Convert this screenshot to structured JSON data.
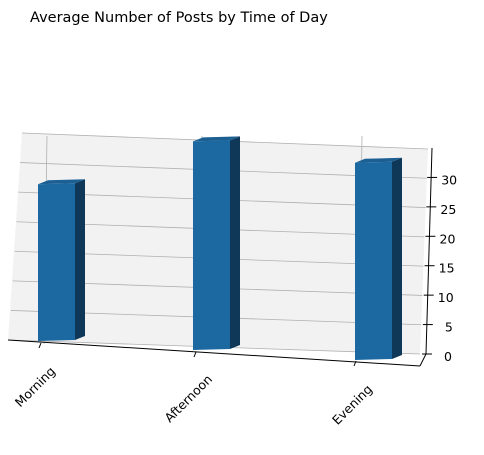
{
  "chart_data": {
    "type": "bar",
    "title": "Average Number of Posts by Time of Day",
    "categories": [
      "Morning",
      "Afternoon",
      "Evening"
    ],
    "values": [
      27.5,
      36.6,
      34.6
    ],
    "xlabel": "",
    "ylabel": "",
    "zlim": [
      0,
      35
    ],
    "z_ticks": [
      0,
      5,
      10,
      15,
      20,
      25,
      30
    ],
    "grid": true,
    "projection": "3d",
    "colors": {
      "bar_front": "#1c69a2",
      "bar_top": "#1b5f93",
      "bar_side": "#0e3758",
      "pane_back": "#f2f2f2",
      "pane_floor": "#ebebeb",
      "grid": "#b0b0b0"
    }
  }
}
